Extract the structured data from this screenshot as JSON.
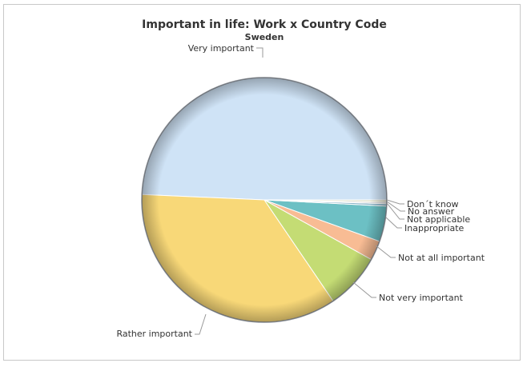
{
  "chart_data": {
    "type": "pie",
    "title": "Important in life: Work x Country Code",
    "subtitle": "Sweden",
    "slices": [
      {
        "label": "Very important",
        "value": 49.3,
        "color": "#cfe3f6"
      },
      {
        "label": "Rather important",
        "value": 35.2,
        "color": "#f8d878"
      },
      {
        "label": "Not very important",
        "value": 7.4,
        "color": "#c4dc74"
      },
      {
        "label": "Not at all important",
        "value": 2.6,
        "color": "#f8bc94"
      },
      {
        "label": "Inappropriate",
        "value": 4.7,
        "color": "#6cc0c4"
      },
      {
        "label": "Not applicable",
        "value": 0.3,
        "color": "#8ab4c8"
      },
      {
        "label": "No answer",
        "value": 0.2,
        "color": "#c4c4c4"
      },
      {
        "label": "Don´t know",
        "value": 0.3,
        "color": "#e0e0c8"
      }
    ]
  }
}
